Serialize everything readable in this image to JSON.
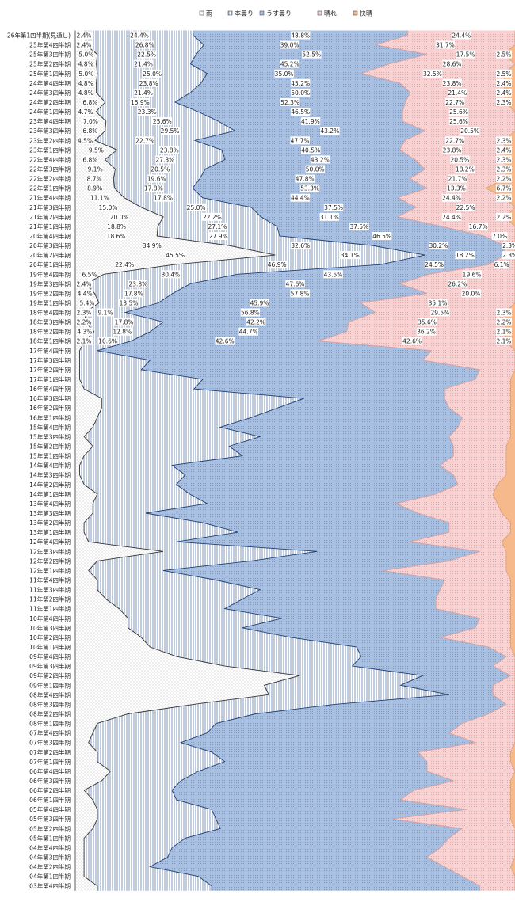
{
  "chart_data": {
    "type": "area",
    "stacking": "percent",
    "orientation": "horizontal",
    "legend_position": "top",
    "series": [
      {
        "name": "雨",
        "color": "#ffffff",
        "pattern": "dots"
      },
      {
        "name": "本曇り",
        "color": "#ffffff",
        "pattern": "vlines"
      },
      {
        "name": "うす曇り",
        "color": "#a9bfe0",
        "pattern": "blue-dots"
      },
      {
        "name": "晴れ",
        "color": "#f3c4c4",
        "pattern": "pink-dots"
      },
      {
        "name": "快晴",
        "color": "#f6b98c",
        "pattern": "orange"
      }
    ],
    "categories": [
      "26年第1四半期(見通し)",
      "25年第4四半期",
      "25年第3四半期",
      "25年第2四半期",
      "25年第1四半期",
      "24年第4四半期",
      "24年第3四半期",
      "24年第2四半期",
      "24年第1四半期",
      "23年第4四半期",
      "23年第3四半期",
      "23年第2四半期",
      "23年第1四半期",
      "22年第4四半期",
      "22年第3四半期",
      "22年第2四半期",
      "22年第1四半期",
      "21年第4四半期",
      "21年第3四半期",
      "21年第2四半期",
      "21年第1四半期",
      "20年第4四半期",
      "20年第3四半期",
      "20年第2四半期",
      "20年第1四半期",
      "19年第4四半期",
      "19年第3四半期",
      "19年第2四半期",
      "19年第1四半期",
      "18年第4四半期",
      "18年第3四半期",
      "18年第2四半期",
      "18年第1四半期",
      "17年第4四半期",
      "17年第3四半期",
      "17年第2四半期",
      "17年第1四半期",
      "16年第4四半期",
      "16年第3四半期",
      "16年第2四半期",
      "16年第1四半期",
      "15年第4四半期",
      "15年第3四半期",
      "15年第2四半期",
      "15年第1四半期",
      "14年第4四半期",
      "14年第3四半期",
      "14年第2四半期",
      "14年第1四半期",
      "13年第4四半期",
      "13年第3四半期",
      "13年第2四半期",
      "13年第1四半期",
      "12年第4四半期",
      "12年第3四半期",
      "12年第2四半期",
      "12年第1四半期",
      "11年第4四半期",
      "11年第3四半期",
      "11年第2四半期",
      "11年第1四半期",
      "10年第4四半期",
      "10年第3四半期",
      "10年第2四半期",
      "10年第1四半期",
      "09年第4四半期",
      "09年第3四半期",
      "09年第2四半期",
      "09年第1四半期",
      "08年第4四半期",
      "08年第3四半期",
      "08年第2四半期",
      "08年第1四半期",
      "07年第4四半期",
      "07年第3四半期",
      "07年第2四半期",
      "07年第1四半期",
      "06年第4四半期",
      "06年第3四半期",
      "06年第2四半期",
      "06年第1四半期",
      "05年第4四半期",
      "05年第3四半期",
      "05年第2四半期",
      "05年第1四半期",
      "04年第4四半期",
      "04年第3四半期",
      "04年第2四半期",
      "04年第1四半期",
      "03年第4四半期"
    ],
    "values": [
      [
        2.4,
        24.4,
        48.8,
        24.4,
        0
      ],
      [
        2.4,
        26.8,
        39.0,
        31.7,
        0
      ],
      [
        5.0,
        22.5,
        52.5,
        17.5,
        2.5
      ],
      [
        4.8,
        21.4,
        45.2,
        28.6,
        0
      ],
      [
        5.0,
        25.0,
        35.0,
        32.5,
        2.5
      ],
      [
        4.8,
        23.8,
        45.2,
        23.8,
        2.4
      ],
      [
        4.8,
        21.4,
        50.0,
        21.4,
        2.4
      ],
      [
        6.8,
        15.9,
        52.3,
        22.7,
        2.3
      ],
      [
        4.7,
        23.3,
        46.5,
        25.6,
        0
      ],
      [
        7.0,
        25.6,
        41.9,
        25.6,
        0
      ],
      [
        6.8,
        29.5,
        43.2,
        20.5,
        0
      ],
      [
        4.5,
        22.7,
        47.7,
        22.7,
        2.3
      ],
      [
        9.5,
        23.8,
        40.5,
        23.8,
        2.4
      ],
      [
        6.8,
        27.3,
        43.2,
        20.5,
        2.3
      ],
      [
        9.1,
        20.5,
        50.0,
        18.2,
        2.3
      ],
      [
        8.7,
        19.6,
        47.8,
        21.7,
        2.2
      ],
      [
        8.9,
        17.8,
        53.3,
        13.3,
        6.7
      ],
      [
        11.1,
        17.8,
        44.4,
        24.4,
        2.2
      ],
      [
        15.0,
        25.0,
        37.5,
        22.5,
        0
      ],
      [
        20.0,
        22.2,
        31.1,
        24.4,
        2.2
      ],
      [
        18.8,
        27.1,
        37.5,
        16.7,
        0
      ],
      [
        18.6,
        27.9,
        46.5,
        7.0,
        0
      ],
      [
        34.9,
        32.6,
        30.2,
        2.3,
        0
      ],
      [
        45.5,
        34.1,
        18.2,
        2.3,
        0
      ],
      [
        22.4,
        46.9,
        24.5,
        6.1,
        0
      ],
      [
        6.5,
        30.4,
        43.5,
        19.6,
        0
      ],
      [
        2.4,
        23.8,
        47.6,
        26.2,
        0
      ],
      [
        4.4,
        17.8,
        57.8,
        20.0,
        0
      ],
      [
        5.4,
        13.5,
        45.9,
        35.1,
        0
      ],
      [
        2.3,
        9.1,
        56.8,
        29.5,
        2.3
      ],
      [
        2.2,
        17.8,
        42.2,
        35.6,
        2.2
      ],
      [
        4.3,
        12.8,
        44.7,
        36.2,
        2.1
      ],
      [
        2.1,
        10.6,
        42.6,
        42.6,
        2.1
      ],
      [
        1,
        4,
        76,
        19,
        0
      ],
      [
        1,
        16,
        62,
        21,
        0
      ],
      [
        1,
        14,
        77,
        8,
        0
      ],
      [
        1,
        28,
        62,
        8,
        1
      ],
      [
        2,
        25,
        57,
        15,
        1
      ],
      [
        6,
        46,
        32,
        15,
        1
      ],
      [
        6,
        40,
        39,
        14,
        1
      ],
      [
        5,
        35,
        48,
        11,
        1
      ],
      [
        4,
        29,
        54,
        12,
        1
      ],
      [
        2,
        40,
        43,
        14,
        1
      ],
      [
        4,
        31,
        51,
        12,
        2
      ],
      [
        2,
        36,
        48,
        12,
        2
      ],
      [
        1,
        21,
        61,
        15,
        2
      ],
      [
        1,
        24,
        61,
        12,
        2
      ],
      [
        2,
        21,
        64,
        9,
        4
      ],
      [
        5,
        21,
        56,
        13,
        5
      ],
      [
        4,
        26,
        43,
        23,
        4
      ],
      [
        4,
        12,
        62,
        19,
        3
      ],
      [
        2,
        27,
        56,
        14,
        1
      ],
      [
        2,
        35,
        48,
        14,
        1
      ],
      [
        3,
        20,
        53,
        21,
        3
      ],
      [
        20,
        35,
        37,
        6,
        2
      ],
      [
        5,
        35,
        45,
        13,
        2
      ],
      [
        3,
        17,
        50,
        28,
        2
      ],
      [
        5,
        27,
        52,
        15,
        1
      ],
      [
        5,
        37,
        41,
        16,
        1
      ],
      [
        7,
        31,
        44,
        17,
        1
      ],
      [
        10,
        24,
        48,
        17,
        1
      ],
      [
        12,
        35,
        45,
        7,
        1
      ],
      [
        12,
        26,
        53,
        8,
        1
      ],
      [
        15,
        34,
        34,
        16,
        1
      ],
      [
        17,
        47,
        30,
        5,
        1
      ],
      [
        23,
        42,
        33,
        2,
        0
      ],
      [
        34,
        29,
        32,
        5,
        0
      ],
      [
        51,
        28,
        20,
        1,
        0
      ],
      [
        43,
        31,
        21,
        5,
        0
      ],
      [
        44,
        41,
        10,
        5,
        0
      ],
      [
        27,
        32,
        39,
        2,
        0
      ],
      [
        12,
        29,
        53,
        6,
        0
      ],
      [
        5,
        27,
        56,
        12,
        0
      ],
      [
        4,
        26,
        55,
        15,
        0
      ],
      [
        3,
        21,
        67,
        9,
        0
      ],
      [
        5,
        26,
        47,
        21,
        1
      ],
      [
        5,
        29,
        46,
        19,
        1
      ],
      [
        8,
        20,
        52,
        20,
        0
      ],
      [
        6,
        18,
        62,
        13,
        1
      ],
      [
        2,
        20,
        55,
        22,
        1
      ],
      [
        4,
        19,
        51,
        25,
        1
      ],
      [
        5,
        26,
        58,
        10,
        1
      ],
      [
        5,
        27,
        40,
        27,
        1
      ],
      [
        4,
        29,
        55,
        12,
        0
      ],
      [
        2,
        23,
        60,
        15,
        0
      ],
      [
        2,
        20,
        61,
        17,
        0
      ],
      [
        2,
        19,
        59,
        20,
        0
      ],
      [
        2,
        15,
        67,
        15,
        1
      ],
      [
        2,
        26,
        60,
        12,
        0
      ],
      [
        5,
        26,
        61,
        8,
        0
      ]
    ],
    "labeled_rows": 33
  }
}
